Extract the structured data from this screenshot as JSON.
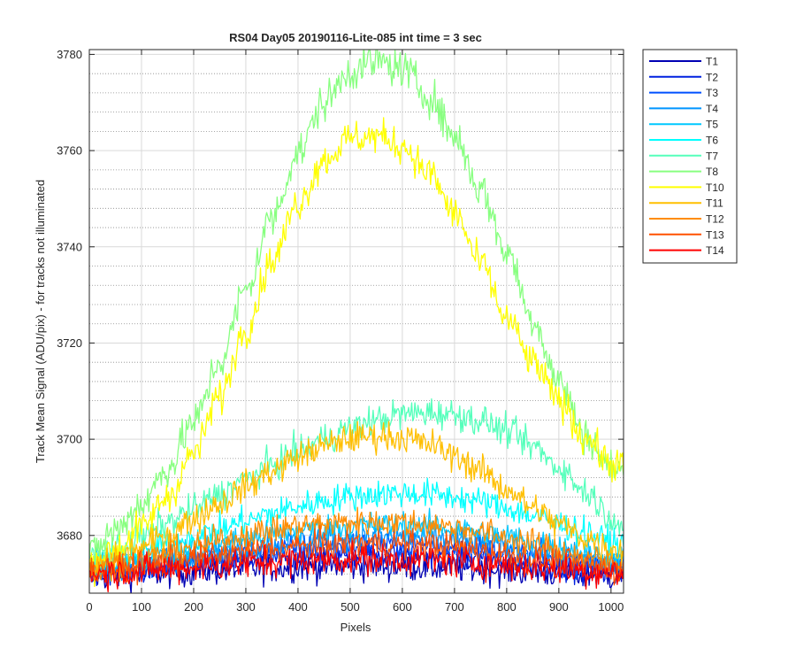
{
  "chart_data": {
    "type": "line",
    "title": "RS04 Day05 20190116-Lite-085 int time = 3 sec",
    "xlabel": "Pixels",
    "ylabel": "Track Mean Signal (ADU/pix) - for tracks not illuminated",
    "xlim": [
      0,
      1024
    ],
    "ylim": [
      3668,
      3781
    ],
    "xticks": [
      0,
      100,
      200,
      300,
      400,
      500,
      600,
      700,
      800,
      900,
      1000
    ],
    "yticks": [
      3680,
      3700,
      3720,
      3740,
      3760,
      3780
    ],
    "grid": true,
    "minor_grid": true,
    "legend_position": "outside-top-right",
    "x": [
      0,
      50,
      100,
      150,
      200,
      250,
      300,
      350,
      400,
      450,
      500,
      550,
      600,
      650,
      700,
      750,
      800,
      850,
      900,
      950,
      1000,
      1024
    ],
    "series": [
      {
        "name": "T1",
        "color": "#0000b4",
        "noise": 1.6,
        "values": [
          3671.5,
          3671.8,
          3672.0,
          3672.3,
          3672.6,
          3672.9,
          3673.1,
          3673.3,
          3673.5,
          3673.6,
          3673.7,
          3673.7,
          3673.6,
          3673.5,
          3673.3,
          3673.1,
          3672.8,
          3672.5,
          3672.2,
          3671.9,
          3671.6,
          3671.5
        ]
      },
      {
        "name": "T2",
        "color": "#0020e0",
        "noise": 1.4,
        "values": [
          3672.0,
          3672.4,
          3672.8,
          3673.3,
          3673.8,
          3674.3,
          3674.8,
          3675.2,
          3675.6,
          3675.9,
          3676.1,
          3676.2,
          3676.2,
          3676.0,
          3675.7,
          3675.3,
          3674.8,
          3674.2,
          3673.6,
          3673.0,
          3672.5,
          3672.3
        ]
      },
      {
        "name": "T3",
        "color": "#0050ff",
        "noise": 1.4,
        "values": [
          3672.5,
          3673.0,
          3673.6,
          3674.2,
          3674.9,
          3675.6,
          3676.2,
          3676.8,
          3677.3,
          3677.7,
          3678.0,
          3678.1,
          3678.1,
          3677.9,
          3677.5,
          3677.0,
          3676.4,
          3675.7,
          3675.0,
          3674.2,
          3673.5,
          3673.2
        ]
      },
      {
        "name": "T4",
        "color": "#0095ff",
        "noise": 1.4,
        "values": [
          3673.0,
          3673.6,
          3674.3,
          3675.1,
          3675.9,
          3676.7,
          3677.5,
          3678.2,
          3678.8,
          3679.3,
          3679.6,
          3679.7,
          3679.7,
          3679.5,
          3679.1,
          3678.5,
          3677.8,
          3677.0,
          3676.1,
          3675.2,
          3674.3,
          3673.9
        ]
      },
      {
        "name": "T5",
        "color": "#00c8ff",
        "noise": 1.4,
        "values": [
          3673.5,
          3674.3,
          3675.2,
          3676.2,
          3677.2,
          3678.3,
          3679.3,
          3680.2,
          3681.0,
          3681.6,
          3682.0,
          3682.2,
          3682.2,
          3681.9,
          3681.4,
          3680.7,
          3679.8,
          3678.8,
          3677.7,
          3676.6,
          3675.5,
          3675.0
        ]
      },
      {
        "name": "T6",
        "color": "#00ffff",
        "noise": 1.5,
        "values": [
          3674.0,
          3675.2,
          3676.6,
          3678.1,
          3679.7,
          3681.3,
          3683.0,
          3684.6,
          3686.0,
          3687.2,
          3688.1,
          3688.6,
          3688.8,
          3688.6,
          3688.0,
          3687.0,
          3685.7,
          3684.1,
          3682.4,
          3680.6,
          3678.8,
          3677.9
        ]
      },
      {
        "name": "T7",
        "color": "#55ffbb",
        "noise": 1.6,
        "values": [
          3675.0,
          3677.3,
          3679.8,
          3682.6,
          3685.5,
          3688.5,
          3691.6,
          3694.6,
          3697.5,
          3700.1,
          3702.3,
          3704.0,
          3705.2,
          3705.6,
          3705.2,
          3703.9,
          3701.7,
          3698.5,
          3694.2,
          3689.2,
          3684.0,
          3681.5
        ]
      },
      {
        "name": "T8",
        "color": "#88ff80",
        "noise": 2.0,
        "values": [
          3676.0,
          3681.0,
          3686.5,
          3694.0,
          3703.5,
          3716.0,
          3731.0,
          3746.0,
          3759.5,
          3770.0,
          3776.5,
          3778.5,
          3777.0,
          3771.5,
          3763.0,
          3752.0,
          3739.0,
          3725.0,
          3712.0,
          3701.0,
          3694.0,
          3693.5
        ]
      },
      {
        "name": "T10",
        "color": "#ffff00",
        "noise": 1.8,
        "values": [
          3674.0,
          3677.0,
          3681.5,
          3688.0,
          3697.0,
          3709.0,
          3723.0,
          3737.0,
          3749.0,
          3758.0,
          3762.5,
          3763.0,
          3761.0,
          3755.5,
          3747.0,
          3736.5,
          3725.0,
          3716.0,
          3708.0,
          3700.5,
          3695.0,
          3694.5
        ]
      },
      {
        "name": "T11",
        "color": "#ffbf00",
        "noise": 1.6,
        "values": [
          3673.0,
          3675.0,
          3677.4,
          3680.2,
          3683.4,
          3686.8,
          3690.2,
          3693.4,
          3696.3,
          3698.6,
          3700.2,
          3700.8,
          3700.4,
          3699.0,
          3696.6,
          3693.4,
          3689.6,
          3685.8,
          3682.3,
          3679.5,
          3677.4,
          3676.8
        ]
      },
      {
        "name": "T12",
        "color": "#ff8c00",
        "noise": 1.5,
        "values": [
          3673.0,
          3673.9,
          3675.0,
          3676.3,
          3677.6,
          3678.9,
          3680.1,
          3681.1,
          3681.9,
          3682.4,
          3682.7,
          3682.8,
          3682.7,
          3682.3,
          3681.6,
          3680.7,
          3679.5,
          3678.2,
          3676.8,
          3675.4,
          3674.2,
          3673.8
        ]
      },
      {
        "name": "T13",
        "color": "#ff5000",
        "noise": 1.5,
        "values": [
          3672.5,
          3673.0,
          3673.6,
          3674.3,
          3675.1,
          3675.9,
          3676.6,
          3677.2,
          3677.7,
          3678.1,
          3678.3,
          3678.4,
          3678.3,
          3678.0,
          3677.5,
          3676.9,
          3676.1,
          3675.3,
          3674.5,
          3673.7,
          3673.0,
          3672.7
        ]
      },
      {
        "name": "T14",
        "color": "#ff0000",
        "noise": 1.6,
        "values": [
          3672.0,
          3672.3,
          3672.6,
          3673.0,
          3673.4,
          3673.8,
          3674.2,
          3674.5,
          3674.8,
          3675.0,
          3675.1,
          3675.1,
          3675.0,
          3674.8,
          3674.5,
          3674.2,
          3673.8,
          3673.4,
          3673.0,
          3672.6,
          3672.3,
          3672.1
        ]
      }
    ]
  }
}
